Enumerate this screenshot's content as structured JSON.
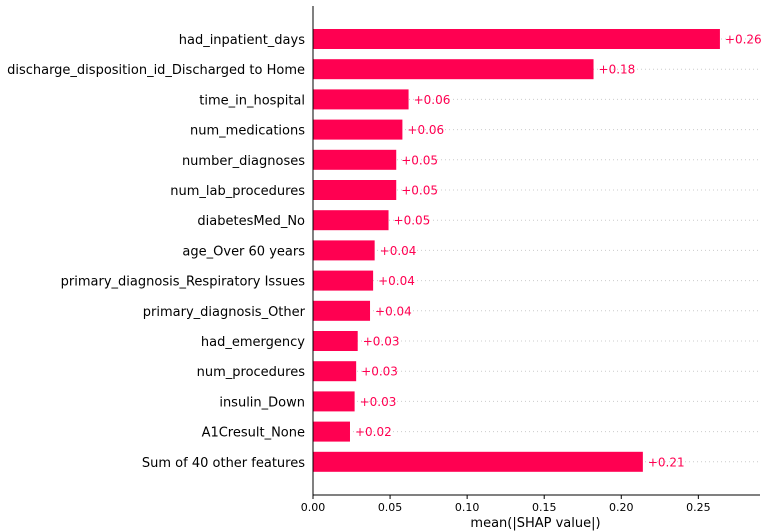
{
  "chart_data": {
    "type": "bar",
    "orientation": "horizontal",
    "categories": [
      "had_inpatient_days",
      "discharge_disposition_id_Discharged to Home",
      "time_in_hospital",
      "num_medications",
      "number_diagnoses",
      "num_lab_procedures",
      "diabetesMed_No",
      "age_Over 60 years",
      "primary_diagnosis_Respiratory Issues",
      "primary_diagnosis_Other",
      "had_emergency",
      "num_procedures",
      "insulin_Down",
      "A1Cresult_None",
      "Sum of 40 other features"
    ],
    "values": [
      0.264,
      0.182,
      0.062,
      0.058,
      0.054,
      0.054,
      0.049,
      0.04,
      0.039,
      0.037,
      0.029,
      0.028,
      0.027,
      0.024,
      0.214
    ],
    "value_labels": [
      "+0.26",
      "+0.18",
      "+0.06",
      "+0.06",
      "+0.05",
      "+0.05",
      "+0.05",
      "+0.04",
      "+0.04",
      "+0.04",
      "+0.03",
      "+0.03",
      "+0.03",
      "+0.02",
      "+0.21"
    ],
    "xlabel": "mean(|SHAP value|)",
    "xticks": [
      0.0,
      0.05,
      0.1,
      0.15,
      0.2,
      0.25
    ],
    "xtick_labels": [
      "0.00",
      "0.05",
      "0.10",
      "0.15",
      "0.20",
      "0.25"
    ],
    "xlim": [
      0,
      0.29
    ],
    "bar_color": "#ff0051",
    "label_color": "#ff0051",
    "gridlines": "dotted horizontal"
  }
}
